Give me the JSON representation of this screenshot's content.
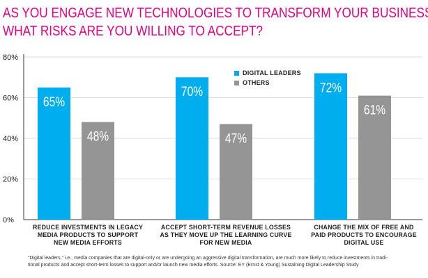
{
  "title_lines": [
    "AS YOU ENGAGE NEW TECHNOLOGIES TO TRANSFORM YOUR BUSINESS,",
    "WHAT RISKS ARE YOU WILLING TO ACCEPT?"
  ],
  "colors": {
    "title": "#e6007e",
    "digital_leaders": "#00aeef",
    "others": "#959595",
    "axis": "#333333",
    "grid": "#d0d0d0"
  },
  "chart_data": {
    "type": "bar",
    "categories": [
      "REDUCE INVESTMENTS IN LEGACY MEDIA PRODUCTS TO SUPPORT NEW MEDIA EFFORTS",
      "ACCEPT SHORT-TERM REVENUE LOSSES AS THEY MOVE UP THE LEARNING CURVE FOR NEW MEDIA",
      "CHANGE THE MIX OF FREE AND PAID PRODUCTS TO ENCOURAGE DIGITAL USE"
    ],
    "category_label_lines": [
      [
        "REDUCE INVESTMENTS IN LEGACY",
        "MEDIA PRODUCTS TO SUPPORT",
        "NEW MEDIA EFFORTS"
      ],
      [
        "ACCEPT SHORT-TERM REVENUE LOSSES",
        "AS THEY MOVE UP THE LEARNING CURVE",
        "FOR NEW MEDIA"
      ],
      [
        "CHANGE THE MIX OF FREE AND",
        "PAID PRODUCTS TO ENCOURAGE",
        "DIGITAL USE"
      ]
    ],
    "series": [
      {
        "name": "DIGITAL LEADERS",
        "values": [
          65,
          70,
          72
        ],
        "labels": [
          "65%",
          "70%",
          "72%"
        ]
      },
      {
        "name": "OTHERS",
        "values": [
          48,
          47,
          61
        ],
        "labels": [
          "48%",
          "47%",
          "61%"
        ]
      }
    ],
    "ylim": [
      0,
      80
    ],
    "yticks": [
      0,
      20,
      40,
      60,
      80
    ],
    "ytick_labels": [
      "0%",
      "20%",
      "40%",
      "60%",
      "80%"
    ],
    "grid": true,
    "legend_position": "top-center",
    "xlabel": "",
    "ylabel": ""
  },
  "footnote_lines": [
    "“Digital leaders,” i.e., media companies that are digital-only or are undergoing an aggressive digital transformation, are much more likely to reduce investments in tradi-",
    "tional products and accept short-term losses to support and/or launch new media efforts. Source: EY (Ernst & Young) Sustaining Digital Leadership Study"
  ]
}
